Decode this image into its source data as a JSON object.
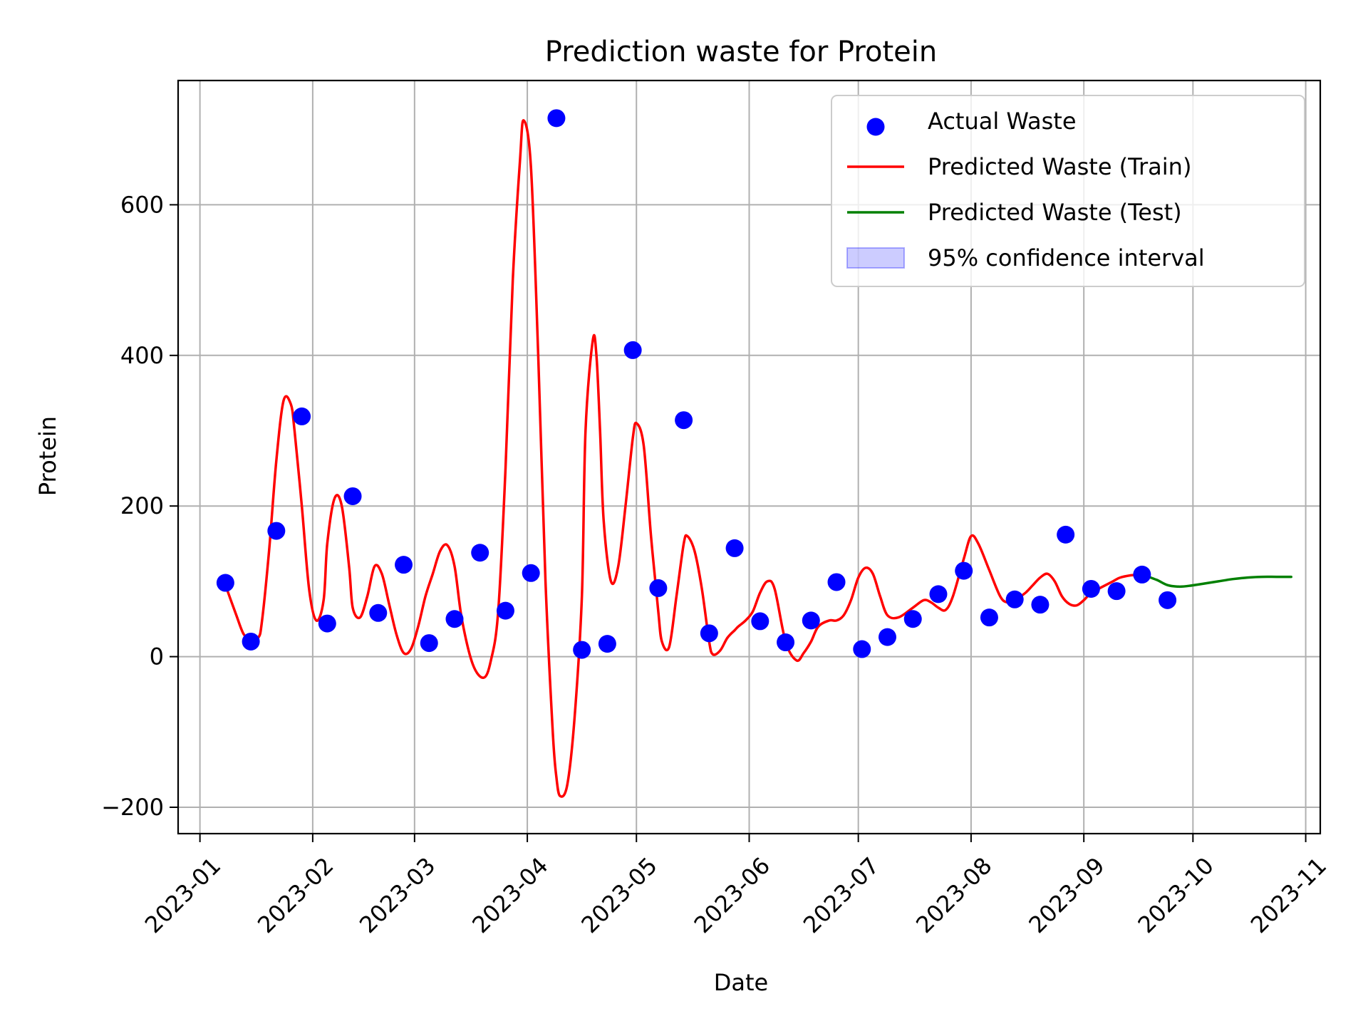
{
  "chart_data": {
    "type": "line",
    "title": "Prediction waste for Protein",
    "xlabel": "Date",
    "ylabel": "Protein",
    "x_axis_type": "date",
    "xlim": [
      "2022-12-26",
      "2023-11-05"
    ],
    "ylim": [
      -235,
      765
    ],
    "x_ticks": [
      "2023-01-01",
      "2023-02-01",
      "2023-03-01",
      "2023-04-01",
      "2023-05-01",
      "2023-06-01",
      "2023-07-01",
      "2023-08-01",
      "2023-09-01",
      "2023-10-01",
      "2023-11-01"
    ],
    "x_tick_labels": [
      "2023-01",
      "2023-02",
      "2023-03",
      "2023-04",
      "2023-05",
      "2023-06",
      "2023-07",
      "2023-08",
      "2023-09",
      "2023-10",
      "2023-11"
    ],
    "y_ticks": [
      -200,
      0,
      200,
      400,
      600
    ],
    "y_tick_labels": [
      "−200",
      "0",
      "200",
      "400",
      "600"
    ],
    "grid": true,
    "legend_position": "top-right",
    "series": [
      {
        "name": "Actual Waste",
        "type": "scatter",
        "color": "#0000ff",
        "x": [
          "2023-01-08",
          "2023-01-15",
          "2023-01-22",
          "2023-01-29",
          "2023-02-05",
          "2023-02-12",
          "2023-02-19",
          "2023-02-26",
          "2023-03-05",
          "2023-03-12",
          "2023-03-19",
          "2023-03-26",
          "2023-04-02",
          "2023-04-09",
          "2023-04-16",
          "2023-04-23",
          "2023-04-30",
          "2023-05-07",
          "2023-05-14",
          "2023-05-21",
          "2023-05-28",
          "2023-06-04",
          "2023-06-11",
          "2023-06-18",
          "2023-06-25",
          "2023-07-02",
          "2023-07-09",
          "2023-07-16",
          "2023-07-23",
          "2023-07-30",
          "2023-08-06",
          "2023-08-13",
          "2023-08-20",
          "2023-08-27",
          "2023-09-03",
          "2023-09-10",
          "2023-09-17",
          "2023-09-24"
        ],
        "y": [
          98,
          20,
          167,
          319,
          44,
          213,
          58,
          122,
          18,
          50,
          138,
          61,
          111,
          715,
          9,
          17,
          407,
          91,
          314,
          31,
          144,
          47,
          19,
          48,
          99,
          10,
          26,
          50,
          83,
          114,
          52,
          76,
          69,
          162,
          90,
          87,
          109,
          75
        ]
      },
      {
        "name": "Predicted Waste (Train)",
        "type": "line",
        "color": "#ff0000",
        "x": [
          "2023-01-08",
          "2023-01-11",
          "2023-01-13",
          "2023-01-15",
          "2023-01-17",
          "2023-01-18",
          "2023-01-20",
          "2023-01-22",
          "2023-01-24",
          "2023-01-26",
          "2023-01-27",
          "2023-01-29",
          "2023-01-31",
          "2023-02-02",
          "2023-02-04",
          "2023-02-05",
          "2023-02-07",
          "2023-02-09",
          "2023-02-11",
          "2023-02-12",
          "2023-02-14",
          "2023-02-16",
          "2023-02-18",
          "2023-02-20",
          "2023-02-22",
          "2023-02-24",
          "2023-02-26",
          "2023-02-28",
          "2023-03-02",
          "2023-03-04",
          "2023-03-06",
          "2023-03-08",
          "2023-03-10",
          "2023-03-12",
          "2023-03-14",
          "2023-03-17",
          "2023-03-20",
          "2023-03-22",
          "2023-03-24",
          "2023-03-26",
          "2023-03-28",
          "2023-03-30",
          "2023-03-31",
          "2023-04-02",
          "2023-04-04",
          "2023-04-06",
          "2023-04-08",
          "2023-04-09",
          "2023-04-10",
          "2023-04-12",
          "2023-04-14",
          "2023-04-16",
          "2023-04-17",
          "2023-04-19",
          "2023-04-20",
          "2023-04-21",
          "2023-04-22",
          "2023-04-24",
          "2023-04-26",
          "2023-04-28",
          "2023-04-30",
          "2023-05-01",
          "2023-05-03",
          "2023-05-05",
          "2023-05-07",
          "2023-05-08",
          "2023-05-10",
          "2023-05-12",
          "2023-05-14",
          "2023-05-15",
          "2023-05-17",
          "2023-05-19",
          "2023-05-21",
          "2023-05-22",
          "2023-05-24",
          "2023-05-26",
          "2023-05-28",
          "2023-05-29",
          "2023-05-31",
          "2023-06-02",
          "2023-06-04",
          "2023-06-06",
          "2023-06-08",
          "2023-06-11",
          "2023-06-14",
          "2023-06-16",
          "2023-06-18",
          "2023-06-20",
          "2023-06-23",
          "2023-06-25",
          "2023-06-27",
          "2023-06-29",
          "2023-07-01",
          "2023-07-03",
          "2023-07-05",
          "2023-07-07",
          "2023-07-09",
          "2023-07-12",
          "2023-07-16",
          "2023-07-19",
          "2023-07-21",
          "2023-07-23",
          "2023-07-25",
          "2023-07-27",
          "2023-07-30",
          "2023-08-01",
          "2023-08-03",
          "2023-08-06",
          "2023-08-09",
          "2023-08-11",
          "2023-08-13",
          "2023-08-16",
          "2023-08-18",
          "2023-08-20",
          "2023-08-22",
          "2023-08-24",
          "2023-08-26",
          "2023-08-28",
          "2023-08-30",
          "2023-09-01",
          "2023-09-03",
          "2023-09-05",
          "2023-09-07",
          "2023-09-09",
          "2023-09-11",
          "2023-09-14",
          "2023-09-17"
        ],
        "y": [
          95,
          55,
          30,
          22,
          25,
          45,
          140,
          260,
          340,
          335,
          300,
          200,
          90,
          48,
          75,
          150,
          210,
          200,
          120,
          65,
          52,
          80,
          120,
          110,
          70,
          30,
          5,
          10,
          40,
          80,
          110,
          140,
          148,
          120,
          50,
          -10,
          -28,
          -5,
          60,
          250,
          500,
          660,
          712,
          650,
          400,
          100,
          -100,
          -160,
          -185,
          -170,
          -80,
          80,
          300,
          420,
          400,
          300,
          180,
          100,
          120,
          200,
          290,
          310,
          280,
          160,
          60,
          20,
          13,
          80,
          150,
          160,
          140,
          90,
          20,
          3,
          8,
          25,
          35,
          40,
          48,
          60,
          85,
          100,
          90,
          20,
          -5,
          5,
          20,
          40,
          48,
          48,
          55,
          75,
          105,
          118,
          110,
          80,
          55,
          52,
          65,
          75,
          72,
          65,
          62,
          80,
          130,
          160,
          150,
          115,
          80,
          72,
          75,
          85,
          95,
          105,
          110,
          100,
          80,
          70,
          68,
          75,
          85,
          90,
          95,
          100,
          105,
          108,
          109
        ]
      },
      {
        "name": "Predicted Waste (Test)",
        "type": "line",
        "color": "#008000",
        "x": [
          "2023-09-17",
          "2023-09-21",
          "2023-09-24",
          "2023-09-27",
          "2023-09-30",
          "2023-10-04",
          "2023-10-08",
          "2023-10-12",
          "2023-10-16",
          "2023-10-20",
          "2023-10-24",
          "2023-10-28"
        ],
        "y": [
          109,
          102,
          95,
          93,
          94,
          97,
          100,
          103,
          105,
          106,
          106,
          106
        ]
      },
      {
        "name": "95% confidence interval",
        "type": "band",
        "color": "#0000ff",
        "opacity": 0.2,
        "x": [],
        "lower": [],
        "upper": []
      }
    ]
  }
}
